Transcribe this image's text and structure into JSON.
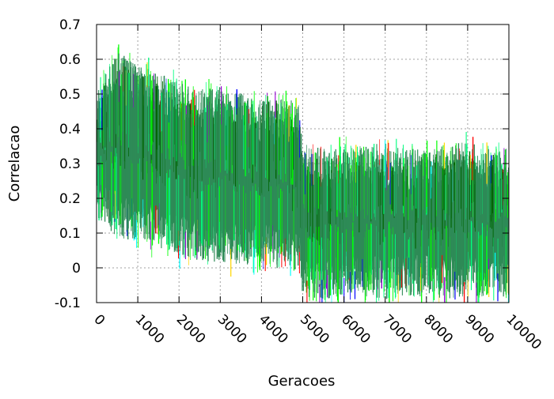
{
  "chart_data": {
    "type": "line",
    "title": "",
    "xlabel": "Geracoes",
    "ylabel": "Correlacao",
    "xlim": [
      0,
      10000
    ],
    "ylim": [
      -0.1,
      0.7
    ],
    "x_ticks": [
      0,
      1000,
      2000,
      3000,
      4000,
      5000,
      6000,
      7000,
      8000,
      9000,
      10000
    ],
    "y_ticks": [
      -0.1,
      0,
      0.1,
      0.2,
      0.3,
      0.4,
      0.5,
      0.6,
      0.7
    ],
    "x_tick_labels": [
      "0",
      "1000",
      "2000",
      "3000",
      "4000",
      "5000",
      "6000",
      "7000",
      "8000",
      "9000",
      "10000"
    ],
    "y_tick_labels": [
      "-0.1",
      "0",
      "0.1",
      "0.2",
      "0.3",
      "0.4",
      "0.5",
      "0.6",
      "0.7"
    ],
    "grid": true,
    "legend": "none",
    "colors": {
      "band_fill": "#2e8b57",
      "series": [
        "#2e8b57",
        "#00ff00",
        "#00ff7f",
        "#006400",
        "#ffd700",
        "#ff0000",
        "#0000ff",
        "#9400d3",
        "#00ffff"
      ]
    },
    "series": [
      {
        "color": "#2e8b57",
        "x": [
          0,
          250,
          500,
          1000,
          1500,
          2000,
          2500,
          3000,
          3500,
          4000,
          4500,
          4900,
          5000,
          5500,
          6000,
          6500,
          7000,
          7500,
          8000,
          8500,
          9000,
          9500,
          10000
        ],
        "upper": [
          0.44,
          0.5,
          0.56,
          0.52,
          0.5,
          0.47,
          0.45,
          0.46,
          0.44,
          0.42,
          0.43,
          0.41,
          0.3,
          0.28,
          0.28,
          0.29,
          0.3,
          0.28,
          0.28,
          0.29,
          0.3,
          0.28,
          0.28
        ],
        "lower": [
          0.2,
          0.18,
          0.15,
          0.14,
          0.12,
          0.1,
          0.08,
          0.08,
          0.07,
          0.07,
          0.06,
          0.05,
          -0.02,
          -0.03,
          -0.02,
          -0.02,
          -0.03,
          -0.02,
          -0.02,
          -0.03,
          -0.02,
          -0.02,
          -0.02
        ]
      }
    ]
  }
}
